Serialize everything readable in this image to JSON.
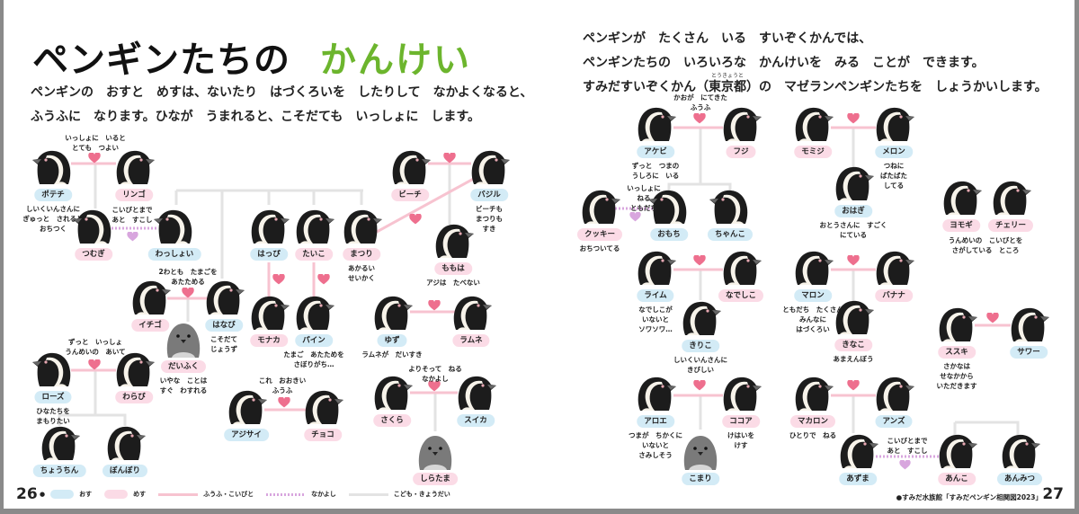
{
  "header": {
    "title": "ペンギンたちの",
    "title_accent": "かんけい",
    "title_accent_color": "#6cb52d",
    "intro_left": "ペンギンの　おすと　めすは、ないたり　はづくろいを　したりして　なかよくなると、\nふうふに　なります。ひなが　うまれると、こそだても　いっしょに　します。",
    "intro_right": "ペンギンが　たくさん　いる　すいぞくかんでは、\nペンギンたちの　いろいろな　かんけいを　みる　ことが　できます。\nすみだすいぞくかん（東京都）の　マゼランペンギンたちを　しょうかいします。",
    "furigana_tokyo": "とうきょうと"
  },
  "colors": {
    "male": "#d3ebf6",
    "female": "#fbdbe6",
    "couple_line": "#f7c3d0",
    "heart": "#ee6f8e",
    "friend": "#d8a6de",
    "family_line": "#e3e3e3"
  },
  "penguins": [
    {
      "name": "ポテチ",
      "sex": "m",
      "caption": "しいくいんさんに\nぎゅっと　されると\nおちつく"
    },
    {
      "name": "リンゴ",
      "sex": "f",
      "caption": ""
    },
    {
      "name": "つむぎ",
      "sex": "f",
      "caption": ""
    },
    {
      "name": "わっしょい",
      "sex": "m",
      "caption": ""
    },
    {
      "name": "はっぴ",
      "sex": "m",
      "caption": ""
    },
    {
      "name": "たいこ",
      "sex": "f",
      "caption": ""
    },
    {
      "name": "まつり",
      "sex": "f",
      "caption": "あかるい\nせいかく"
    },
    {
      "name": "ビーチ",
      "sex": "f",
      "caption": ""
    },
    {
      "name": "バジル",
      "sex": "m",
      "caption": "ビーチも\nまつりも\nすき"
    },
    {
      "name": "ももは",
      "sex": "f",
      "caption": "アジは　たべない"
    },
    {
      "name": "イチゴ",
      "sex": "f",
      "caption": ""
    },
    {
      "name": "はなび",
      "sex": "m",
      "caption": "こそだて\nじょうず"
    },
    {
      "name": "だいふく",
      "sex": "f",
      "chick": true,
      "caption": "いやな　ことは\nすぐ　わすれる"
    },
    {
      "name": "モナカ",
      "sex": "f",
      "caption": ""
    },
    {
      "name": "パイン",
      "sex": "m",
      "caption": "たまご　あたためを\nさぼりがち…"
    },
    {
      "name": "ゆず",
      "sex": "m",
      "caption": "ラムネが　だいすき"
    },
    {
      "name": "ラムネ",
      "sex": "f",
      "caption": ""
    },
    {
      "name": "ローズ",
      "sex": "m",
      "caption": "ひなたちを\nまもりたい"
    },
    {
      "name": "わらび",
      "sex": "f",
      "caption": ""
    },
    {
      "name": "ちょうちん",
      "sex": "m",
      "caption": ""
    },
    {
      "name": "ぼんぼり",
      "sex": "m",
      "caption": ""
    },
    {
      "name": "アジサイ",
      "sex": "m",
      "caption": ""
    },
    {
      "name": "チョコ",
      "sex": "f",
      "caption": ""
    },
    {
      "name": "さくら",
      "sex": "f",
      "caption": ""
    },
    {
      "name": "スイカ",
      "sex": "m",
      "caption": ""
    },
    {
      "name": "しらたま",
      "sex": "f",
      "chick": true,
      "caption": ""
    },
    {
      "name": "アケビ",
      "sex": "m",
      "caption": "ずっと　つまの\nうしろに　いる"
    },
    {
      "name": "フジ",
      "sex": "f",
      "caption": ""
    },
    {
      "name": "クッキー",
      "sex": "f",
      "caption": "おちついてる"
    },
    {
      "name": "おもち",
      "sex": "m",
      "caption": ""
    },
    {
      "name": "ちゃんこ",
      "sex": "m",
      "caption": ""
    },
    {
      "name": "モミジ",
      "sex": "f",
      "caption": ""
    },
    {
      "name": "メロン",
      "sex": "m",
      "caption": "つねに\nばたばた\nしてる"
    },
    {
      "name": "おはぎ",
      "sex": "m",
      "caption": "おとうさんに　すごく\nにている"
    },
    {
      "name": "ヨモギ",
      "sex": "f",
      "caption": ""
    },
    {
      "name": "チェリー",
      "sex": "f",
      "caption": ""
    },
    {
      "name": "ライム",
      "sex": "m",
      "caption": "なでしこが\nいないと\nソワソワ…"
    },
    {
      "name": "なでしこ",
      "sex": "f",
      "caption": ""
    },
    {
      "name": "きりこ",
      "sex": "m",
      "caption": "しいくいんさんに\nきびしい"
    },
    {
      "name": "マロン",
      "sex": "m",
      "caption": "ともだち　たくさん\nみんなに\nはづくろい"
    },
    {
      "name": "バナナ",
      "sex": "f",
      "caption": ""
    },
    {
      "name": "きなこ",
      "sex": "f",
      "caption": "あまえんぼう"
    },
    {
      "name": "ススキ",
      "sex": "f",
      "caption": "さかなは\nせなかから\nいただきます"
    },
    {
      "name": "サワー",
      "sex": "m",
      "caption": ""
    },
    {
      "name": "アロエ",
      "sex": "m",
      "caption": "つまが　ちかくに\nいないと\nさみしそう"
    },
    {
      "name": "ココア",
      "sex": "f",
      "caption": "けはいを\nけす"
    },
    {
      "name": "こまり",
      "sex": "m",
      "chick": true,
      "caption": ""
    },
    {
      "name": "マカロン",
      "sex": "f",
      "caption": "ひとりで　ねる"
    },
    {
      "name": "アンズ",
      "sex": "m",
      "caption": ""
    },
    {
      "name": "あずま",
      "sex": "m",
      "caption": ""
    },
    {
      "name": "あんこ",
      "sex": "f",
      "caption": ""
    },
    {
      "name": "あんみつ",
      "sex": "m",
      "caption": ""
    }
  ],
  "notes": [
    "いっしょに　いると\nとても　つよい",
    "こいびとまで\nあと　すこし",
    "2わとも　たまごを\nあたためる",
    "ずっと　いっしょ\nうんめいの　あいて",
    "これ　おおきい\nふうふ",
    "よりそって　ねる\nなかよし",
    "かおが　にてきた\nふうふ",
    "いっしょに\nねる\nともだち",
    "うんめいの　こいびとを\nさがしている　ところ",
    "こいびとまで\nあと　すこし"
  ],
  "legend": {
    "male": "おす",
    "female": "めす",
    "couple": "ふうふ・こいびと",
    "friends": "なかよし",
    "family": "こども・きょうだい"
  },
  "footer": {
    "page_left": "26",
    "page_right": "27",
    "credit": "●すみだ水族館「すみだペンギン相関図2023」"
  }
}
